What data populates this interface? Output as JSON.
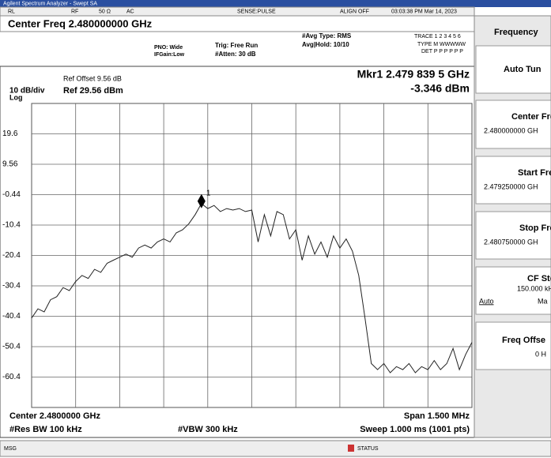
{
  "title_bar": "Agilent Spectrum Analyzer - Swept SA",
  "status_row": {
    "rl": "RL",
    "rf": "RF",
    "impedance": "50 Ω",
    "coupling": "AC",
    "sense": "SENSE:PULSE",
    "align": "ALIGN OFF",
    "datetime": "03:03:38 PM Mar 14, 2023"
  },
  "header": {
    "center_freq": "Center Freq 2.480000000 GHz",
    "pno": "PNO: Wide",
    "ifgain": "IFGain:Low",
    "trig": "Trig: Free Run",
    "atten": "#Atten: 30 dB",
    "avg_type": "#Avg Type: RMS",
    "avg_hold": "Avg|Hold: 10/10",
    "trace": "TRACE 1 2 3 4 5 6",
    "type": "TYPE M WWWWW",
    "det": "DET P P P P P P"
  },
  "plot": {
    "ref_offset": "Ref Offset 9.56 dB",
    "scale": "10 dB/div",
    "ref_level": "Ref 29.56 dBm",
    "log": "Log",
    "marker_freq": "Mkr1 2.479 839 5 GHz",
    "marker_level": "-3.346 dBm",
    "marker_label": "1",
    "marker_index": 27,
    "ylim": [
      -70.44,
      29.56
    ],
    "yticks": [
      {
        "value": 19.56,
        "label": "19.6"
      },
      9.56,
      -0.44,
      {
        "value": -10.44,
        "label": "-10.4"
      },
      {
        "value": -20.44,
        "label": "-20.4"
      },
      {
        "value": -30.44,
        "label": "-30.4"
      },
      {
        "value": -40.44,
        "label": "-40.4"
      },
      {
        "value": -50.44,
        "label": "-50.4"
      },
      {
        "value": -60.44,
        "label": "-60.4"
      }
    ],
    "trace": [
      -41,
      -38,
      -39,
      -35,
      -34,
      -31,
      -32,
      -29,
      -27,
      -28,
      -25,
      -26,
      -23,
      -22,
      -21,
      -20,
      -21,
      -18,
      -17,
      -18,
      -16,
      -15,
      -16,
      -13,
      -12,
      -10,
      -7,
      -3.346,
      -5,
      -4,
      -6,
      -5,
      -5.5,
      -5,
      -6,
      -5.5,
      -16,
      -7,
      -14,
      -6,
      -7,
      -15,
      -12,
      -22,
      -14,
      -20,
      -16,
      -21,
      -14,
      -18,
      -15,
      -19,
      -27,
      -41,
      -56,
      -58,
      -56,
      -59,
      -57,
      -58,
      -56,
      -59,
      -57,
      -58,
      -55,
      -58,
      -56,
      -51,
      -58,
      -53,
      -49
    ]
  },
  "footer": {
    "center": "Center 2.4800000 GHz",
    "span": "Span 1.500 MHz",
    "rbw": "#Res BW 100 kHz",
    "vbw": "#VBW 300 kHz",
    "sweep": "Sweep  1.000 ms (1001 pts)"
  },
  "menu": {
    "title": "Frequency",
    "auto_tune": "Auto Tun",
    "center_freq": "Center Fre",
    "center_value": "2.480000000 GH",
    "start_freq": "Start Fre",
    "start_value": "2.479250000 GH",
    "stop_freq": "Stop Fre",
    "stop_value": "2.480750000 GH",
    "cf_step": "CF Ste",
    "cf_value": "150.000 kH",
    "auto": "Auto",
    "man": "Ma",
    "freq_offset": "Freq Offse",
    "offset_value": "0 H"
  },
  "status_bar": {
    "msg": "MSG",
    "status": "STATUS"
  }
}
